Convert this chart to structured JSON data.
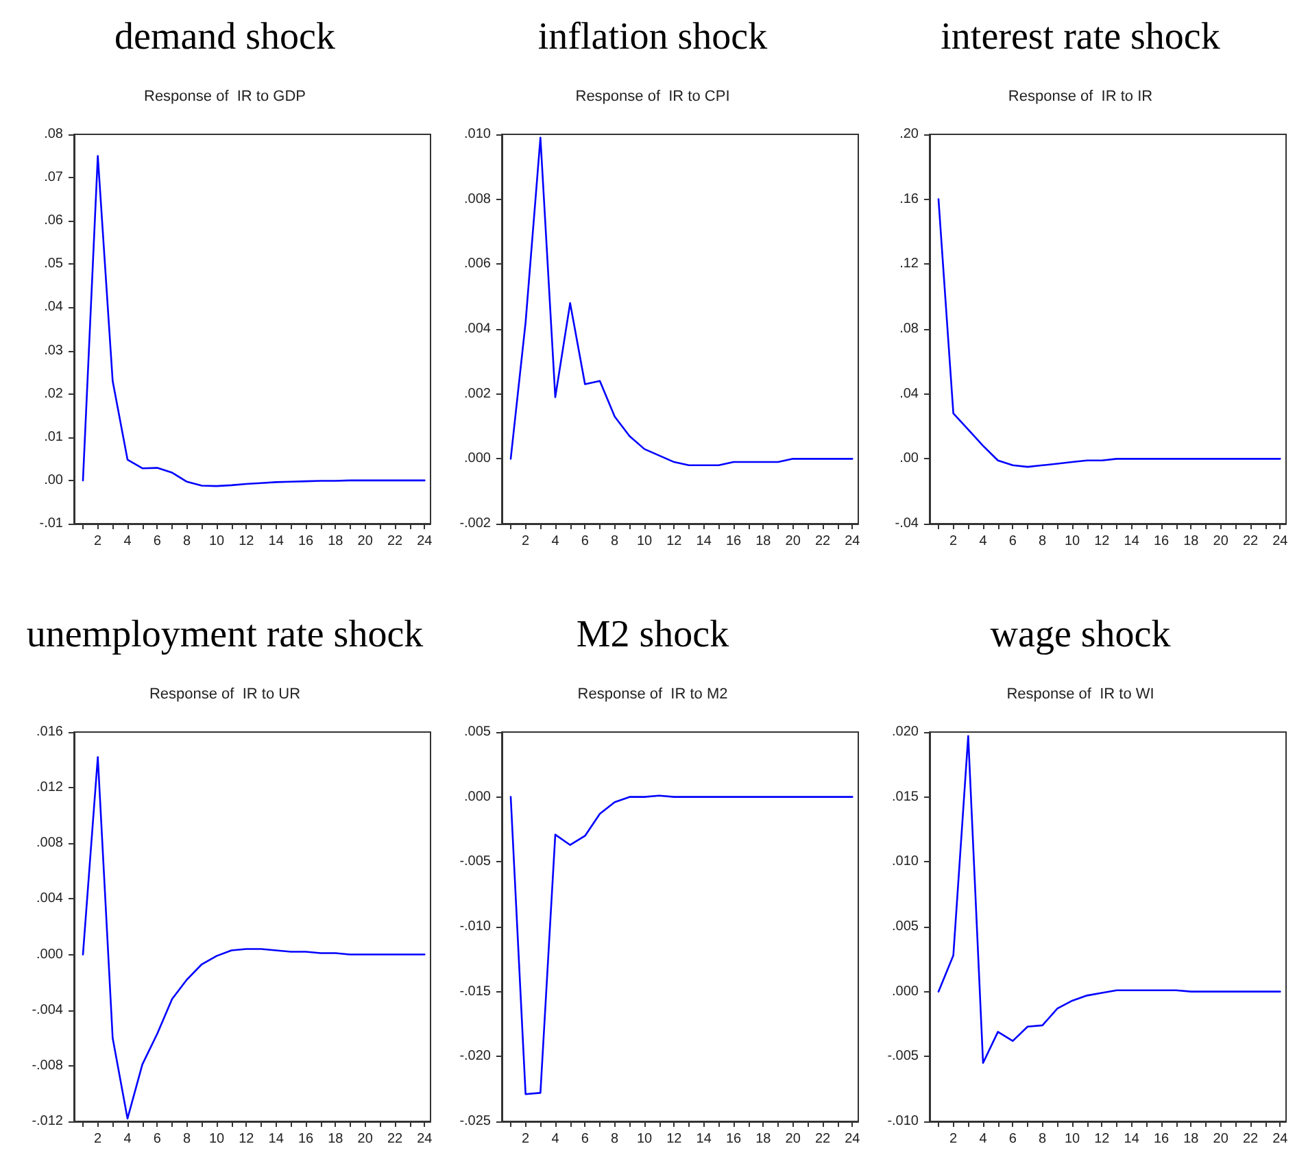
{
  "chart_data": [
    {
      "type": "line",
      "title": "demand shock",
      "subtitle": "Response of  IR to GDP",
      "x": [
        1,
        2,
        3,
        4,
        5,
        6,
        7,
        8,
        9,
        10,
        11,
        12,
        13,
        14,
        15,
        16,
        17,
        18,
        19,
        20,
        21,
        22,
        23,
        24
      ],
      "series": [
        {
          "color": "#0000ff",
          "values": [
            0,
            0.075,
            0.023,
            0.0048,
            0.0028,
            0.0029,
            0.0018,
            -0.0003,
            -0.0012,
            -0.0013,
            -0.0011,
            -0.0008,
            -0.0006,
            -0.0004,
            -0.0003,
            -0.0002,
            -0.0001,
            -0.0001,
            0,
            0,
            0,
            0,
            0,
            0
          ]
        }
      ],
      "xlim": [
        0.4,
        24.4
      ],
      "xticks": [
        {
          "value": 1,
          "label": null
        },
        2,
        {
          "value": 3,
          "label": null
        },
        4,
        {
          "value": 5,
          "label": null
        },
        6,
        {
          "value": 7,
          "label": null
        },
        8,
        {
          "value": 9,
          "label": null
        },
        10,
        {
          "value": 11,
          "label": null
        },
        12,
        {
          "value": 13,
          "label": null
        },
        14,
        {
          "value": 15,
          "label": null
        },
        16,
        {
          "value": 17,
          "label": null
        },
        18,
        {
          "value": 19,
          "label": null
        },
        20,
        {
          "value": 21,
          "label": null
        },
        22,
        {
          "value": 23,
          "label": null
        },
        24
      ],
      "ylim": [
        -0.01,
        0.08
      ],
      "yticks": [
        {
          "value": -0.01,
          "label": "-.01"
        },
        {
          "value": 0,
          "label": ".00"
        },
        {
          "value": 0.01,
          "label": ".01"
        },
        {
          "value": 0.02,
          "label": ".02"
        },
        {
          "value": 0.03,
          "label": ".03"
        },
        {
          "value": 0.04,
          "label": ".04"
        },
        {
          "value": 0.05,
          "label": ".05"
        },
        {
          "value": 0.06,
          "label": ".06"
        },
        {
          "value": 0.07,
          "label": ".07"
        },
        {
          "value": 0.08,
          "label": ".08"
        }
      ],
      "grid": false,
      "line_style": "solid"
    },
    {
      "type": "line",
      "title": "inflation shock",
      "subtitle": "Response of  IR to CPI",
      "x": [
        1,
        2,
        3,
        4,
        5,
        6,
        7,
        8,
        9,
        10,
        11,
        12,
        13,
        14,
        15,
        16,
        17,
        18,
        19,
        20,
        21,
        22,
        23,
        24
      ],
      "series": [
        {
          "color": "#0000ff",
          "values": [
            0,
            0.0042,
            0.0099,
            0.0019,
            0.0048,
            0.0023,
            0.0024,
            0.0013,
            0.0007,
            0.0003,
            0.0001,
            -0.0001,
            -0.0002,
            -0.0002,
            -0.0002,
            -0.0001,
            -0.0001,
            -0.0001,
            -0.0001,
            0,
            0,
            0,
            0,
            0
          ]
        }
      ],
      "xlim": [
        0.4,
        24.4
      ],
      "xticks": [
        {
          "value": 1,
          "label": null
        },
        2,
        {
          "value": 3,
          "label": null
        },
        4,
        {
          "value": 5,
          "label": null
        },
        6,
        {
          "value": 7,
          "label": null
        },
        8,
        {
          "value": 9,
          "label": null
        },
        10,
        {
          "value": 11,
          "label": null
        },
        12,
        {
          "value": 13,
          "label": null
        },
        14,
        {
          "value": 15,
          "label": null
        },
        16,
        {
          "value": 17,
          "label": null
        },
        18,
        {
          "value": 19,
          "label": null
        },
        20,
        {
          "value": 21,
          "label": null
        },
        22,
        {
          "value": 23,
          "label": null
        },
        24
      ],
      "ylim": [
        -0.002,
        0.01
      ],
      "yticks": [
        {
          "value": -0.002,
          "label": "-.002"
        },
        {
          "value": 0,
          "label": ".000"
        },
        {
          "value": 0.002,
          "label": ".002"
        },
        {
          "value": 0.004,
          "label": ".004"
        },
        {
          "value": 0.006,
          "label": ".006"
        },
        {
          "value": 0.008,
          "label": ".008"
        },
        {
          "value": 0.01,
          "label": ".010"
        }
      ],
      "grid": false,
      "line_style": "solid"
    },
    {
      "type": "line",
      "title": "interest rate shock",
      "subtitle": "Response of  IR to IR",
      "x": [
        1,
        2,
        3,
        4,
        5,
        6,
        7,
        8,
        9,
        10,
        11,
        12,
        13,
        14,
        15,
        16,
        17,
        18,
        19,
        20,
        21,
        22,
        23,
        24
      ],
      "series": [
        {
          "color": "#0000ff",
          "values": [
            0.16,
            0.028,
            0.018,
            0.008,
            -0.001,
            -0.004,
            -0.005,
            -0.004,
            -0.003,
            -0.002,
            -0.001,
            -0.001,
            0,
            0,
            0,
            0,
            0,
            0,
            0,
            0,
            0,
            0,
            0,
            0
          ]
        }
      ],
      "xlim": [
        0.4,
        24.4
      ],
      "xticks": [
        {
          "value": 1,
          "label": null
        },
        2,
        {
          "value": 3,
          "label": null
        },
        4,
        {
          "value": 5,
          "label": null
        },
        6,
        {
          "value": 7,
          "label": null
        },
        8,
        {
          "value": 9,
          "label": null
        },
        10,
        {
          "value": 11,
          "label": null
        },
        12,
        {
          "value": 13,
          "label": null
        },
        14,
        {
          "value": 15,
          "label": null
        },
        16,
        {
          "value": 17,
          "label": null
        },
        18,
        {
          "value": 19,
          "label": null
        },
        20,
        {
          "value": 21,
          "label": null
        },
        22,
        {
          "value": 23,
          "label": null
        },
        24
      ],
      "ylim": [
        -0.04,
        0.2
      ],
      "yticks": [
        {
          "value": -0.04,
          "label": "-.04"
        },
        {
          "value": 0,
          "label": ".00"
        },
        {
          "value": 0.04,
          "label": ".04"
        },
        {
          "value": 0.08,
          "label": ".08"
        },
        {
          "value": 0.12,
          "label": ".12"
        },
        {
          "value": 0.16,
          "label": ".16"
        },
        {
          "value": 0.2,
          "label": ".20"
        }
      ],
      "grid": false,
      "line_style": "solid"
    },
    {
      "type": "line",
      "title": "unemployment rate shock",
      "subtitle": "Response of  IR to UR",
      "x": [
        1,
        2,
        3,
        4,
        5,
        6,
        7,
        8,
        9,
        10,
        11,
        12,
        13,
        14,
        15,
        16,
        17,
        18,
        19,
        20,
        21,
        22,
        23,
        24
      ],
      "series": [
        {
          "color": "#0000ff",
          "values": [
            0,
            0.0142,
            -0.006,
            -0.0118,
            -0.0079,
            -0.0057,
            -0.0032,
            -0.0018,
            -0.0007,
            -0.0001,
            0.0003,
            0.0004,
            0.0004,
            0.0003,
            0.0002,
            0.0002,
            0.0001,
            0.0001,
            0,
            0,
            0,
            0,
            0,
            0
          ]
        }
      ],
      "xlim": [
        0.4,
        24.4
      ],
      "xticks": [
        {
          "value": 1,
          "label": null
        },
        2,
        {
          "value": 3,
          "label": null
        },
        4,
        {
          "value": 5,
          "label": null
        },
        6,
        {
          "value": 7,
          "label": null
        },
        8,
        {
          "value": 9,
          "label": null
        },
        10,
        {
          "value": 11,
          "label": null
        },
        12,
        {
          "value": 13,
          "label": null
        },
        14,
        {
          "value": 15,
          "label": null
        },
        16,
        {
          "value": 17,
          "label": null
        },
        18,
        {
          "value": 19,
          "label": null
        },
        20,
        {
          "value": 21,
          "label": null
        },
        22,
        {
          "value": 23,
          "label": null
        },
        24
      ],
      "ylim": [
        -0.012,
        0.016
      ],
      "yticks": [
        {
          "value": -0.012,
          "label": "-.012"
        },
        {
          "value": -0.008,
          "label": "-.008"
        },
        {
          "value": -0.004,
          "label": "-.004"
        },
        {
          "value": 0,
          "label": ".000"
        },
        {
          "value": 0.004,
          "label": ".004"
        },
        {
          "value": 0.008,
          "label": ".008"
        },
        {
          "value": 0.012,
          "label": ".012"
        },
        {
          "value": 0.016,
          "label": ".016"
        }
      ],
      "grid": false,
      "line_style": "solid"
    },
    {
      "type": "line",
      "title": "M2 shock",
      "subtitle": "Response of  IR to M2",
      "x": [
        1,
        2,
        3,
        4,
        5,
        6,
        7,
        8,
        9,
        10,
        11,
        12,
        13,
        14,
        15,
        16,
        17,
        18,
        19,
        20,
        21,
        22,
        23,
        24
      ],
      "series": [
        {
          "color": "#0000ff",
          "values": [
            0,
            -0.0229,
            -0.0228,
            -0.0029,
            -0.0037,
            -0.003,
            -0.0013,
            -0.0004,
            0,
            0,
            0.0001,
            0,
            0,
            0,
            0,
            0,
            0,
            0,
            0,
            0,
            0,
            0,
            0,
            0
          ]
        }
      ],
      "xlim": [
        0.4,
        24.4
      ],
      "xticks": [
        {
          "value": 1,
          "label": null
        },
        2,
        {
          "value": 3,
          "label": null
        },
        4,
        {
          "value": 5,
          "label": null
        },
        6,
        {
          "value": 7,
          "label": null
        },
        8,
        {
          "value": 9,
          "label": null
        },
        10,
        {
          "value": 11,
          "label": null
        },
        12,
        {
          "value": 13,
          "label": null
        },
        14,
        {
          "value": 15,
          "label": null
        },
        16,
        {
          "value": 17,
          "label": null
        },
        18,
        {
          "value": 19,
          "label": null
        },
        20,
        {
          "value": 21,
          "label": null
        },
        22,
        {
          "value": 23,
          "label": null
        },
        24
      ],
      "ylim": [
        -0.025,
        0.005
      ],
      "yticks": [
        {
          "value": -0.025,
          "label": "-.025"
        },
        {
          "value": -0.02,
          "label": "-.020"
        },
        {
          "value": -0.015,
          "label": "-.015"
        },
        {
          "value": -0.01,
          "label": "-.010"
        },
        {
          "value": -0.005,
          "label": "-.005"
        },
        {
          "value": 0,
          "label": ".000"
        },
        {
          "value": 0.005,
          "label": ".005"
        }
      ],
      "grid": false,
      "line_style": "solid"
    },
    {
      "type": "line",
      "title": "wage shock",
      "subtitle": "Response of  IR to WI",
      "x": [
        1,
        2,
        3,
        4,
        5,
        6,
        7,
        8,
        9,
        10,
        11,
        12,
        13,
        14,
        15,
        16,
        17,
        18,
        19,
        20,
        21,
        22,
        23,
        24
      ],
      "series": [
        {
          "color": "#0000ff",
          "values": [
            0,
            0.0028,
            0.0197,
            -0.0055,
            -0.0031,
            -0.0038,
            -0.0027,
            -0.0026,
            -0.0013,
            -0.0007,
            -0.0003,
            -0.0001,
            0.0001,
            0.0001,
            0.0001,
            0.0001,
            0.0001,
            0,
            0,
            0,
            0,
            0,
            0,
            0
          ]
        }
      ],
      "xlim": [
        0.4,
        24.4
      ],
      "xticks": [
        {
          "value": 1,
          "label": null
        },
        2,
        {
          "value": 3,
          "label": null
        },
        4,
        {
          "value": 5,
          "label": null
        },
        6,
        {
          "value": 7,
          "label": null
        },
        8,
        {
          "value": 9,
          "label": null
        },
        10,
        {
          "value": 11,
          "label": null
        },
        12,
        {
          "value": 13,
          "label": null
        },
        14,
        {
          "value": 15,
          "label": null
        },
        16,
        {
          "value": 17,
          "label": null
        },
        18,
        {
          "value": 19,
          "label": null
        },
        20,
        {
          "value": 21,
          "label": null
        },
        22,
        {
          "value": 23,
          "label": null
        },
        24
      ],
      "ylim": [
        -0.01,
        0.02
      ],
      "yticks": [
        {
          "value": -0.01,
          "label": "-.010"
        },
        {
          "value": -0.005,
          "label": "-.005"
        },
        {
          "value": 0,
          "label": ".000"
        },
        {
          "value": 0.005,
          "label": ".005"
        },
        {
          "value": 0.01,
          "label": ".010"
        },
        {
          "value": 0.015,
          "label": ".015"
        },
        {
          "value": 0.02,
          "label": ".020"
        }
      ],
      "grid": false,
      "line_style": "solid"
    }
  ]
}
